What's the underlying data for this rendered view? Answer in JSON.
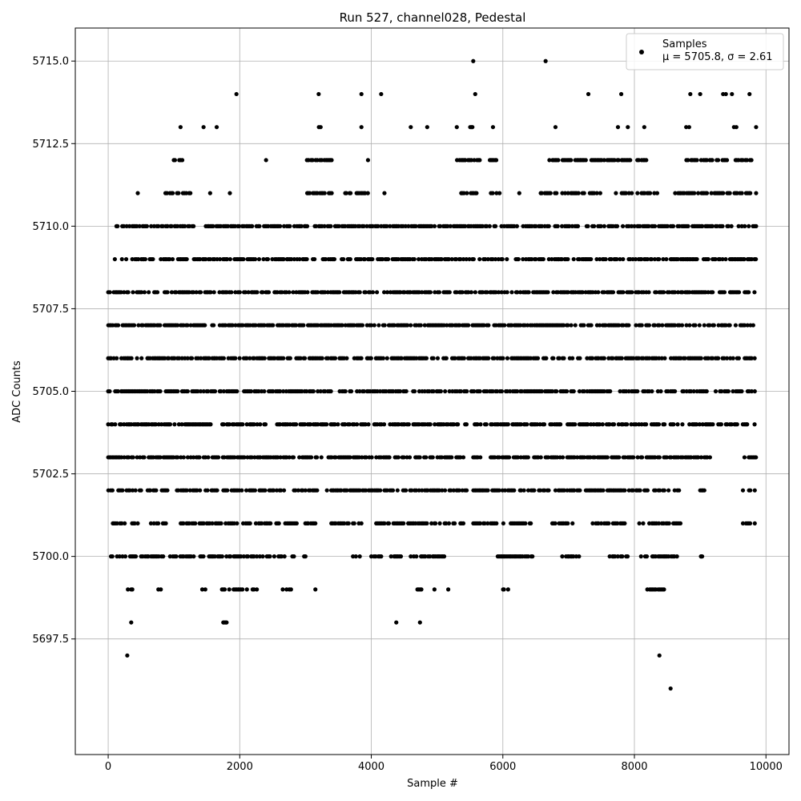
{
  "chart_data": {
    "type": "scatter",
    "title": "Run 527, channel028, Pedestal",
    "xlabel": "Sample #",
    "ylabel": "ADC Counts",
    "xlim": [
      -500,
      10350
    ],
    "ylim": [
      5694.0,
      5716.0
    ],
    "xticks": [
      0,
      2000,
      4000,
      6000,
      8000,
      10000
    ],
    "xtick_labels": [
      "0",
      "2000",
      "4000",
      "6000",
      "8000",
      "10000"
    ],
    "yticks": [
      5697.5,
      5700.0,
      5702.5,
      5705.0,
      5707.5,
      5710.0,
      5712.5,
      5715.0
    ],
    "ytick_labels": [
      "5697.5",
      "5700.0",
      "5702.5",
      "5705.0",
      "5707.5",
      "5710.0",
      "5712.5",
      "5715.0"
    ],
    "grid": true,
    "legend": {
      "position": "upper-right",
      "entries": [
        "Samples",
        "μ = 5705.8, σ = 2.61"
      ]
    },
    "marker_color": "#000000",
    "series": [
      {
        "name": "Samples",
        "density_by_level": [
          {
            "y": 5696,
            "x_ranges": [
              [
                8550,
                8550
              ]
            ]
          },
          {
            "y": 5697,
            "x_ranges": [
              [
                290,
                290
              ],
              [
                8380,
                8380
              ]
            ]
          },
          {
            "y": 5698,
            "x_ranges": [
              [
                350,
                350
              ],
              [
                1750,
                1800
              ],
              [
                4380,
                4380
              ],
              [
                4740,
                4740
              ]
            ]
          },
          {
            "y": 5699,
            "x_ranges": [
              [
                300,
                370
              ],
              [
                750,
                800
              ],
              [
                1430,
                1500
              ],
              [
                1730,
                2260
              ],
              [
                2650,
                2800
              ],
              [
                3150,
                3150
              ],
              [
                4700,
                4800
              ],
              [
                4960,
                4960
              ],
              [
                5170,
                5170
              ],
              [
                6000,
                6080
              ],
              [
                8150,
                8450
              ]
            ]
          },
          {
            "y": 5700,
            "x_ranges": [
              [
                0,
                420
              ],
              [
                500,
                1300
              ],
              [
                1400,
                2700
              ],
              [
                2800,
                3000
              ],
              [
                3700,
                3850
              ],
              [
                4000,
                4150
              ],
              [
                4300,
                4450
              ],
              [
                4600,
                5200
              ],
              [
                5900,
                6450
              ],
              [
                6900,
                7200
              ],
              [
                7600,
                7900
              ],
              [
                8100,
                8650
              ],
              [
                9000,
                9030
              ]
            ]
          },
          {
            "y": 5701,
            "x_ranges": [
              [
                0,
                450
              ],
              [
                650,
                900
              ],
              [
                1100,
                2600
              ],
              [
                2650,
                3150
              ],
              [
                3350,
                3850
              ],
              [
                4050,
                5400
              ],
              [
                5550,
                6450
              ],
              [
                6750,
                7100
              ],
              [
                7300,
                7900
              ],
              [
                8050,
                8700
              ],
              [
                9650,
                9830
              ]
            ]
          },
          {
            "y": 5702,
            "x_ranges": [
              [
                0,
                500
              ],
              [
                600,
                900
              ],
              [
                1000,
                3200
              ],
              [
                3300,
                5450
              ],
              [
                5550,
                6700
              ],
              [
                6800,
                8200
              ],
              [
                8300,
                8700
              ],
              [
                9000,
                9150
              ],
              [
                9650,
                9830
              ]
            ]
          },
          {
            "y": 5703,
            "x_ranges": [
              [
                0,
                5400
              ],
              [
                5550,
                9150
              ],
              [
                9650,
                9850
              ]
            ]
          },
          {
            "y": 5704,
            "x_ranges": [
              [
                0,
                5450
              ],
              [
                5550,
                6650
              ],
              [
                6700,
                9850
              ]
            ]
          },
          {
            "y": 5705,
            "x_ranges": [
              [
                0,
                9850
              ]
            ]
          },
          {
            "y": 5706,
            "x_ranges": [
              [
                0,
                9850
              ]
            ]
          },
          {
            "y": 5707,
            "x_ranges": [
              [
                0,
                9850
              ]
            ]
          },
          {
            "y": 5708,
            "x_ranges": [
              [
                0,
                9850
              ]
            ]
          },
          {
            "y": 5709,
            "x_ranges": [
              [
                100,
                700
              ],
              [
                800,
                9850
              ]
            ]
          },
          {
            "y": 5710,
            "x_ranges": [
              [
                100,
                900
              ],
              [
                900,
                1300
              ],
              [
                1400,
                8000
              ],
              [
                8000,
                9850
              ]
            ]
          },
          {
            "y": 5711,
            "x_ranges": [
              [
                450,
                450
              ],
              [
                850,
                1250
              ],
              [
                1550,
                1550
              ],
              [
                1850,
                1850
              ],
              [
                3000,
                3400
              ],
              [
                3600,
                3950
              ],
              [
                4200,
                4200
              ],
              [
                5300,
                5600
              ],
              [
                5800,
                5950
              ],
              [
                6250,
                6250
              ],
              [
                6550,
                7500
              ],
              [
                7700,
                8350
              ],
              [
                8600,
                9850
              ]
            ]
          },
          {
            "y": 5712,
            "x_ranges": [
              [
                950,
                1150
              ],
              [
                2400,
                2400
              ],
              [
                3000,
                3400
              ],
              [
                3950,
                3950
              ],
              [
                5300,
                5650
              ],
              [
                5800,
                5900
              ],
              [
                6600,
                8200
              ],
              [
                8750,
                9800
              ]
            ]
          },
          {
            "y": 5713,
            "x_ranges": [
              [
                1100,
                1100
              ],
              [
                1450,
                1450
              ],
              [
                1650,
                1650
              ],
              [
                3200,
                3250
              ],
              [
                3850,
                3850
              ],
              [
                4600,
                4600
              ],
              [
                4850,
                4850
              ],
              [
                5300,
                5300
              ],
              [
                5500,
                5600
              ],
              [
                5850,
                5850
              ],
              [
                6800,
                6800
              ],
              [
                7750,
                7750
              ],
              [
                7900,
                7900
              ],
              [
                8150,
                8150
              ],
              [
                8700,
                8850
              ],
              [
                9450,
                9550
              ],
              [
                9850,
                9850
              ]
            ]
          },
          {
            "y": 5714,
            "x_ranges": [
              [
                1950,
                1950
              ],
              [
                3200,
                3200
              ],
              [
                3850,
                3850
              ],
              [
                4150,
                4150
              ],
              [
                5500,
                5580
              ],
              [
                7300,
                7300
              ],
              [
                7800,
                7800
              ],
              [
                8850,
                8850
              ],
              [
                9000,
                9000
              ],
              [
                9300,
                9550
              ],
              [
                9750,
                9750
              ]
            ]
          },
          {
            "y": 5715,
            "x_ranges": [
              [
                5550,
                5550
              ],
              [
                6650,
                6650
              ]
            ]
          }
        ]
      }
    ]
  }
}
